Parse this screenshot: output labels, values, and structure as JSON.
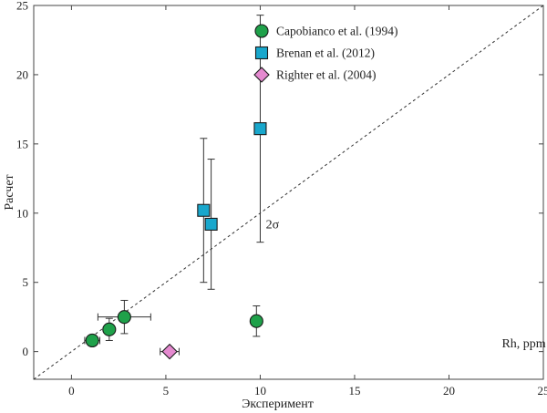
{
  "chart_data": {
    "type": "scatter",
    "xlabel": "Эксперимент",
    "ylabel": "Расчет",
    "xlim": [
      -2,
      25
    ],
    "ylim": [
      -2,
      25
    ],
    "xticks": [
      0,
      5,
      10,
      15,
      20,
      25
    ],
    "yticks": [
      0,
      5,
      10,
      15,
      20,
      25
    ],
    "reference_line": {
      "style": "dashed",
      "description": "1:1 line",
      "from": [
        -2,
        -2
      ],
      "to": [
        25,
        25
      ]
    },
    "legend_position": "top-center",
    "series": [
      {
        "name": "Capobianco et al. (1994)",
        "marker": "circle",
        "color": "#1fa14a",
        "points": [
          {
            "x": 1.1,
            "y": 0.8,
            "xerr": 0.4,
            "yerr": 0.35
          },
          {
            "x": 2.0,
            "y": 1.6,
            "xerr": 0,
            "yerr": 0.8
          },
          {
            "x": 2.8,
            "y": 2.5,
            "xerr": 1.4,
            "yerr": 1.2
          },
          {
            "x": 9.8,
            "y": 2.2,
            "xerr": 0,
            "yerr": 1.1
          }
        ]
      },
      {
        "name": "Brenan et al. (2012)",
        "marker": "square",
        "color": "#19a7cc",
        "points": [
          {
            "x": 7.0,
            "y": 10.2,
            "xerr": 0,
            "yerr": 5.2
          },
          {
            "x": 7.4,
            "y": 9.2,
            "xerr": 0,
            "yerr": 4.7
          },
          {
            "x": 10.0,
            "y": 16.1,
            "xerr": 0,
            "yerr": 8.2
          }
        ]
      },
      {
        "name": "Righter et al. (2004)",
        "marker": "diamond",
        "color": "#e58ad0",
        "points": [
          {
            "x": 5.2,
            "y": 0.0,
            "xerr": 0.5,
            "yerr": 0
          }
        ]
      }
    ],
    "annotations": [
      {
        "text": "2σ",
        "x": 10.3,
        "y": 8.9
      },
      {
        "text": "Rh, ppm",
        "x": 22.8,
        "y": 0.3
      }
    ]
  }
}
